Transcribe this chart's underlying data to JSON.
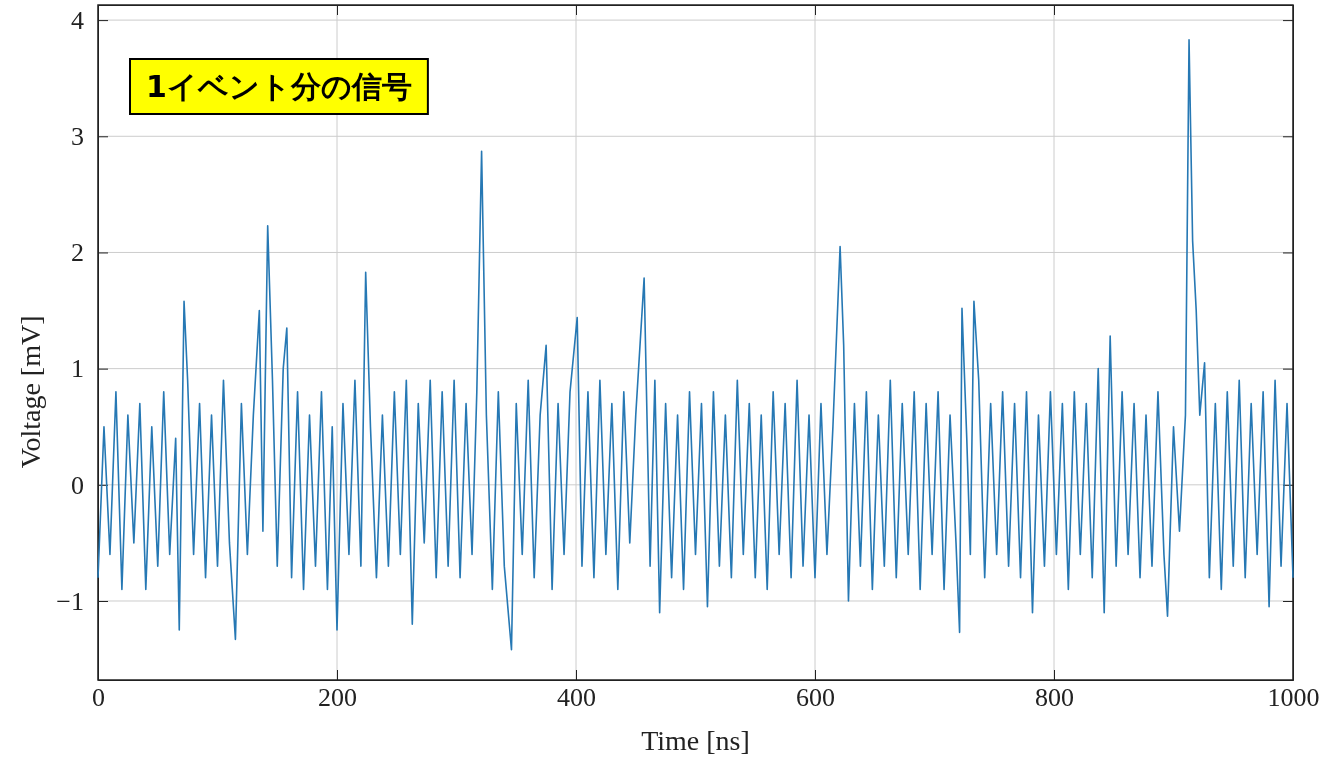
{
  "chart_data": {
    "type": "line",
    "title": "1イベント分の信号",
    "xlabel": "Time [ns]",
    "ylabel": "Voltage [mV]",
    "xlim": [
      0,
      1000
    ],
    "xticks": [
      0,
      200,
      400,
      600,
      800,
      1000
    ],
    "ylim": [
      -1.68,
      4.13
    ],
    "yticks": [
      {
        "value": -1,
        "label": "−1"
      },
      0,
      1,
      2,
      3,
      4
    ],
    "grid": true,
    "series": [
      {
        "color": "#2678b4",
        "x": [
          0,
          5,
          10,
          15,
          20,
          25,
          30,
          35,
          40,
          45,
          50,
          55,
          60,
          65,
          68,
          72,
          75,
          80,
          85,
          90,
          95,
          100,
          105,
          110,
          115,
          120,
          125,
          130,
          135,
          138,
          142,
          146,
          150,
          155,
          158,
          162,
          167,
          172,
          177,
          182,
          187,
          192,
          196,
          200,
          205,
          210,
          215,
          220,
          224,
          228,
          233,
          238,
          243,
          248,
          253,
          258,
          263,
          268,
          273,
          278,
          283,
          288,
          293,
          298,
          303,
          308,
          313,
          317,
          321,
          325,
          330,
          335,
          340,
          346,
          350,
          355,
          360,
          365,
          370,
          375,
          380,
          385,
          390,
          395,
          401,
          405,
          410,
          415,
          420,
          425,
          430,
          435,
          440,
          445,
          450,
          457,
          462,
          466,
          470,
          475,
          480,
          485,
          490,
          495,
          500,
          505,
          510,
          515,
          520,
          525,
          530,
          535,
          540,
          545,
          550,
          555,
          560,
          565,
          570,
          575,
          580,
          585,
          590,
          595,
          600,
          605,
          610,
          615,
          621,
          624,
          628,
          633,
          638,
          643,
          648,
          653,
          658,
          663,
          668,
          673,
          678,
          683,
          688,
          693,
          698,
          703,
          708,
          713,
          718,
          721,
          723,
          727,
          730,
          733,
          737,
          742,
          747,
          752,
          757,
          762,
          767,
          772,
          777,
          782,
          787,
          792,
          797,
          802,
          807,
          812,
          817,
          822,
          827,
          832,
          837,
          842,
          847,
          852,
          857,
          862,
          867,
          872,
          877,
          882,
          887,
          892,
          895,
          900,
          905,
          910,
          913,
          916,
          919,
          922,
          926,
          930,
          935,
          940,
          945,
          950,
          955,
          960,
          965,
          970,
          975,
          980,
          985,
          990,
          995,
          1000
        ],
        "values": [
          -0.8,
          0.5,
          -0.6,
          0.8,
          -0.9,
          0.6,
          -0.5,
          0.7,
          -0.9,
          0.5,
          -0.7,
          0.8,
          -0.6,
          0.4,
          -1.25,
          1.58,
          0.9,
          -0.6,
          0.7,
          -0.8,
          0.6,
          -0.7,
          0.9,
          -0.5,
          -1.33,
          0.7,
          -0.6,
          0.6,
          1.5,
          -0.4,
          2.23,
          0.9,
          -0.7,
          1.0,
          1.35,
          -0.8,
          0.8,
          -0.9,
          0.6,
          -0.7,
          0.8,
          -0.9,
          0.5,
          -1.25,
          0.7,
          -0.6,
          0.9,
          -0.7,
          1.83,
          0.5,
          -0.8,
          0.6,
          -0.7,
          0.8,
          -0.6,
          0.9,
          -1.2,
          0.7,
          -0.5,
          0.9,
          -0.8,
          0.8,
          -0.7,
          0.9,
          -0.8,
          0.7,
          -0.6,
          0.8,
          2.87,
          0.6,
          -0.9,
          0.8,
          -0.7,
          -1.42,
          0.7,
          -0.6,
          0.9,
          -0.8,
          0.6,
          1.2,
          -0.9,
          0.7,
          -0.6,
          0.8,
          1.44,
          -0.7,
          0.8,
          -0.8,
          0.9,
          -0.6,
          0.7,
          -0.9,
          0.8,
          -0.5,
          0.6,
          1.78,
          -0.7,
          0.9,
          -1.1,
          0.7,
          -0.8,
          0.6,
          -0.9,
          0.8,
          -0.6,
          0.7,
          -1.05,
          0.8,
          -0.7,
          0.6,
          -0.8,
          0.9,
          -0.6,
          0.7,
          -0.8,
          0.6,
          -0.9,
          0.8,
          -0.6,
          0.7,
          -0.8,
          0.9,
          -0.7,
          0.6,
          -0.8,
          0.7,
          -0.6,
          0.5,
          2.05,
          1.2,
          -1.0,
          0.7,
          -0.7,
          0.8,
          -0.9,
          0.6,
          -0.7,
          0.9,
          -0.8,
          0.7,
          -0.6,
          0.8,
          -0.9,
          0.7,
          -0.6,
          0.8,
          -0.9,
          0.6,
          -0.5,
          -1.27,
          1.52,
          0.4,
          -0.6,
          1.58,
          0.9,
          -0.8,
          0.7,
          -0.6,
          0.8,
          -0.7,
          0.7,
          -0.8,
          0.8,
          -1.1,
          0.6,
          -0.7,
          0.8,
          -0.6,
          0.7,
          -0.9,
          0.8,
          -0.6,
          0.7,
          -0.8,
          1.0,
          -1.1,
          1.28,
          -0.7,
          0.8,
          -0.6,
          0.7,
          -0.8,
          0.6,
          -0.7,
          0.8,
          -0.6,
          -1.13,
          0.5,
          -0.4,
          0.6,
          3.83,
          2.1,
          1.5,
          0.6,
          1.05,
          -0.8,
          0.7,
          -0.9,
          0.8,
          -0.7,
          0.9,
          -0.8,
          0.7,
          -0.6,
          0.8,
          -1.05,
          0.9,
          -0.7,
          0.7,
          -0.8
        ]
      }
    ]
  }
}
